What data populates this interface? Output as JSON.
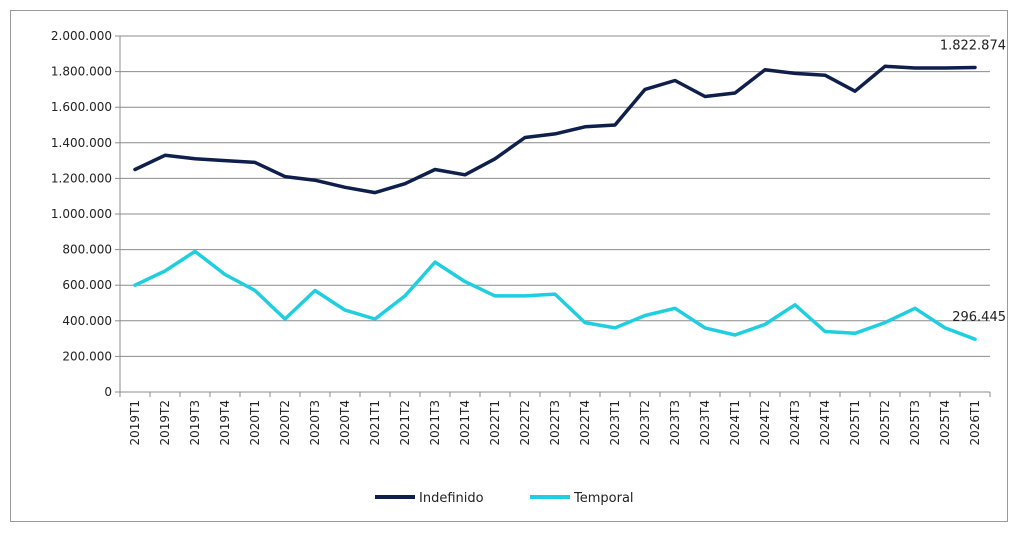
{
  "chart_data": {
    "type": "line",
    "title": "",
    "xlabel": "",
    "ylabel": "",
    "ylim": [
      0,
      2000000
    ],
    "yticks": [
      0,
      200000,
      400000,
      600000,
      800000,
      1000000,
      1200000,
      1400000,
      1600000,
      1800000,
      2000000
    ],
    "ytick_labels": [
      "0",
      "200.000",
      "400.000",
      "600.000",
      "800.000",
      "1.000.000",
      "1.200.000",
      "1.400.000",
      "1.600.000",
      "1.800.000",
      "2.000.000"
    ],
    "grid": true,
    "legend_position": "bottom",
    "categories": [
      "2019T1",
      "2019T2",
      "2019T3",
      "2019T4",
      "2020T1",
      "2020T2",
      "2020T3",
      "2020T4",
      "2021T1",
      "2021T2",
      "2021T3",
      "2021T4",
      "2022T1",
      "2022T2",
      "2022T3",
      "2022T4",
      "2023T1",
      "2023T2",
      "2023T3",
      "2023T4",
      "2024T1",
      "2024T2",
      "2024T3",
      "2024T4",
      "2025T1",
      "2025T2",
      "2025T3",
      "2025T4",
      "2026T1"
    ],
    "series": [
      {
        "name": "Indefinido",
        "color": "#0f1f4b",
        "values": [
          1250000,
          1330000,
          1310000,
          1300000,
          1290000,
          1210000,
          1190000,
          1150000,
          1120000,
          1170000,
          1250000,
          1220000,
          1310000,
          1430000,
          1450000,
          1490000,
          1500000,
          1700000,
          1750000,
          1660000,
          1680000,
          1810000,
          1790000,
          1780000,
          1690000,
          1830000,
          1820000,
          1820000,
          1822874
        ],
        "end_label": "1.822.874"
      },
      {
        "name": "Temporal",
        "color": "#1fcfe0",
        "values": [
          600000,
          680000,
          790000,
          660000,
          570000,
          410000,
          570000,
          460000,
          410000,
          540000,
          730000,
          620000,
          540000,
          540000,
          550000,
          390000,
          360000,
          430000,
          470000,
          360000,
          320000,
          380000,
          490000,
          340000,
          330000,
          390000,
          470000,
          360000,
          296445
        ],
        "end_label": "296.445"
      }
    ]
  }
}
